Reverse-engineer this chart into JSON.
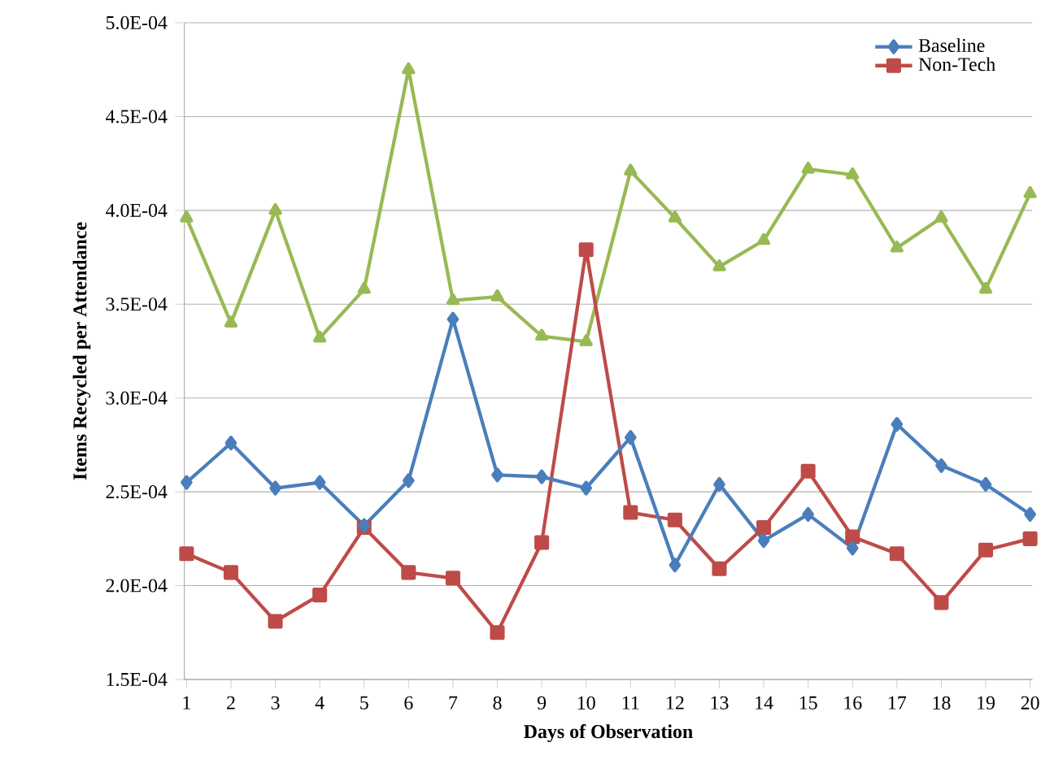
{
  "chart_data": {
    "type": "line",
    "xlabel": "Days of Observation",
    "ylabel": "Items Recycled  per  Attendance",
    "categories": [
      "1",
      "2",
      "3",
      "4",
      "5",
      "6",
      "7",
      "8",
      "9",
      "10",
      "11",
      "12",
      "13",
      "14",
      "15",
      "16",
      "17",
      "18",
      "19",
      "20"
    ],
    "series": [
      {
        "name": "Baseline",
        "color": "#4a7ebb",
        "marker": "diamond",
        "values": [
          0.000255,
          0.000276,
          0.000252,
          0.000255,
          0.000232,
          0.000256,
          0.000342,
          0.000259,
          0.000258,
          0.000252,
          0.000279,
          0.000211,
          0.000254,
          0.000224,
          0.000238,
          0.00022,
          0.000286,
          0.000264,
          0.000254,
          0.000238
        ]
      },
      {
        "name": "Non-Tech",
        "color": "#be4b48",
        "marker": "square",
        "values": [
          0.000217,
          0.000207,
          0.000181,
          0.000195,
          0.000231,
          0.000207,
          0.000204,
          0.000175,
          0.000223,
          0.000379,
          0.000239,
          0.000235,
          0.000209,
          0.000231,
          0.000261,
          0.000226,
          0.000217,
          0.000191,
          0.000219,
          0.000225
        ]
      },
      {
        "color": "#98b954",
        "marker": "triangle",
        "values": [
          0.000396,
          0.00034,
          0.0004,
          0.000332,
          0.000358,
          0.000475,
          0.000352,
          0.000354,
          0.000333,
          0.00033,
          0.000421,
          0.000396,
          0.00037,
          0.000384,
          0.000422,
          0.000419,
          0.00038,
          0.000396,
          0.000358,
          0.000409
        ]
      }
    ],
    "ylim": [
      0.00015,
      0.0005
    ],
    "yticks": [
      {
        "value": 0.00015,
        "label": "1.5E-04"
      },
      {
        "value": 0.0002,
        "label": "2.0E-04"
      },
      {
        "value": 0.00025,
        "label": "2.5E-04"
      },
      {
        "value": 0.0003,
        "label": "3.0E-04"
      },
      {
        "value": 0.00035,
        "label": "3.5E-04"
      },
      {
        "value": 0.0004,
        "label": "4.0E-04"
      },
      {
        "value": 0.00045,
        "label": "4.5E-04"
      },
      {
        "value": 0.0005,
        "label": "5.0E-04"
      }
    ],
    "grid": "y",
    "legend": "top right",
    "line_style": "solid"
  }
}
